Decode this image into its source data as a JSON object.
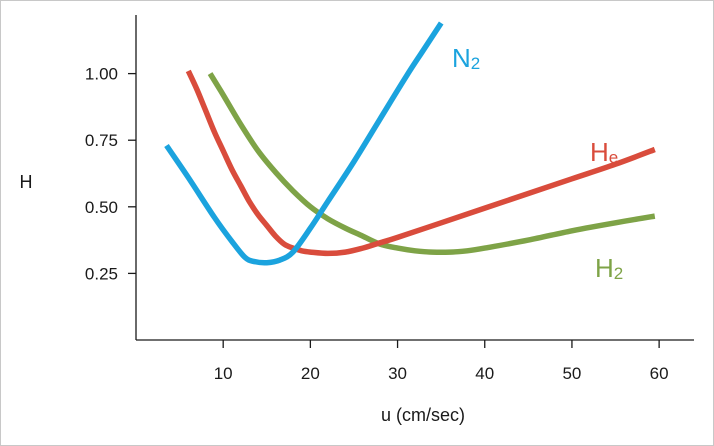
{
  "chart_data": {
    "type": "line",
    "title": "",
    "xlabel": "u (cm/sec)",
    "ylabel": "H",
    "xlim": [
      0,
      64
    ],
    "ylim": [
      0,
      1.22
    ],
    "x_ticks": [
      10,
      20,
      30,
      40,
      50,
      60
    ],
    "y_ticks": [
      0.25,
      0.5,
      0.75,
      1.0
    ],
    "y_tick_labels": [
      "0.25",
      "0.50",
      "0.75",
      "1.00"
    ],
    "grid": false,
    "legend": "none",
    "series": [
      {
        "name_main": "N",
        "name_sub": "2",
        "color": "#1ba3de",
        "x": [
          3.5,
          6,
          9,
          11,
          12.5,
          13.5,
          15,
          16.5,
          18,
          20,
          22,
          25,
          28,
          31,
          33,
          35
        ],
        "y": [
          0.73,
          0.61,
          0.46,
          0.37,
          0.31,
          0.295,
          0.29,
          0.3,
          0.33,
          0.42,
          0.52,
          0.67,
          0.83,
          0.99,
          1.09,
          1.19
        ]
      },
      {
        "name_main": "H",
        "name_sub": "e",
        "color": "#d94c3c",
        "x": [
          6,
          7,
          8,
          9,
          10,
          11,
          12,
          13,
          14,
          15,
          16,
          17,
          18,
          19,
          20,
          22,
          24,
          26,
          28,
          30,
          35,
          40,
          45,
          50,
          55,
          59.5
        ],
        "y": [
          1.01,
          0.94,
          0.86,
          0.78,
          0.71,
          0.64,
          0.58,
          0.52,
          0.47,
          0.43,
          0.39,
          0.36,
          0.345,
          0.335,
          0.33,
          0.325,
          0.33,
          0.345,
          0.365,
          0.385,
          0.44,
          0.495,
          0.55,
          0.605,
          0.66,
          0.715
        ]
      },
      {
        "name_main": "H",
        "name_sub": "2",
        "color": "#7ea347",
        "x": [
          8.5,
          10,
          12,
          14,
          16,
          18,
          20,
          22,
          24,
          26,
          28,
          30,
          32,
          34,
          36,
          38,
          40,
          45,
          50,
          55,
          59.5
        ],
        "y": [
          1.0,
          0.92,
          0.81,
          0.71,
          0.63,
          0.56,
          0.5,
          0.455,
          0.42,
          0.39,
          0.36,
          0.345,
          0.335,
          0.33,
          0.33,
          0.335,
          0.345,
          0.375,
          0.41,
          0.44,
          0.465
        ]
      }
    ]
  }
}
